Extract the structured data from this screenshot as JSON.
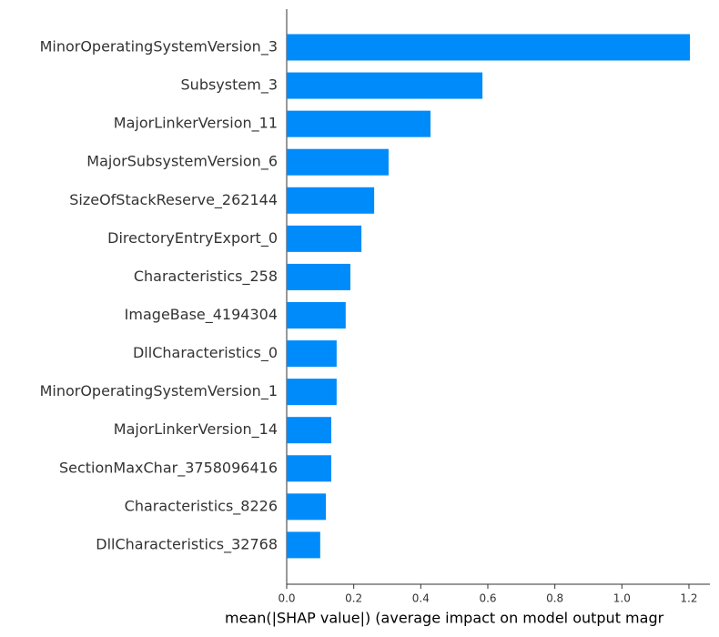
{
  "chart_data": {
    "type": "bar",
    "orientation": "horizontal",
    "color": "#008bfb",
    "categories": [
      "MinorOperatingSystemVersion_3",
      "Subsystem_3",
      "MajorLinkerVersion_11",
      "MajorSubsystemVersion_6",
      "SizeOfStackReserve_262144",
      "DirectoryEntryExport_0",
      "Characteristics_258",
      "ImageBase_4194304",
      "DllCharacteristics_0",
      "MinorOperatingSystemVersion_1",
      "MajorLinkerVersion_14",
      "SectionMaxChar_3758096416",
      "Characteristics_8226",
      "DllCharacteristics_32768"
    ],
    "values": [
      1.203,
      0.584,
      0.429,
      0.304,
      0.261,
      0.223,
      0.19,
      0.176,
      0.149,
      0.149,
      0.133,
      0.133,
      0.117,
      0.1
    ],
    "xlim": [
      0,
      1.2625
    ],
    "xticks": [
      {
        "value": 0,
        "label": "0.0"
      },
      0.2,
      0.4,
      0.6,
      0.8,
      {
        "value": 1,
        "label": "1.0"
      },
      1.2
    ],
    "xlabel": "mean(|SHAP value|) (average impact on model output magr"
  }
}
